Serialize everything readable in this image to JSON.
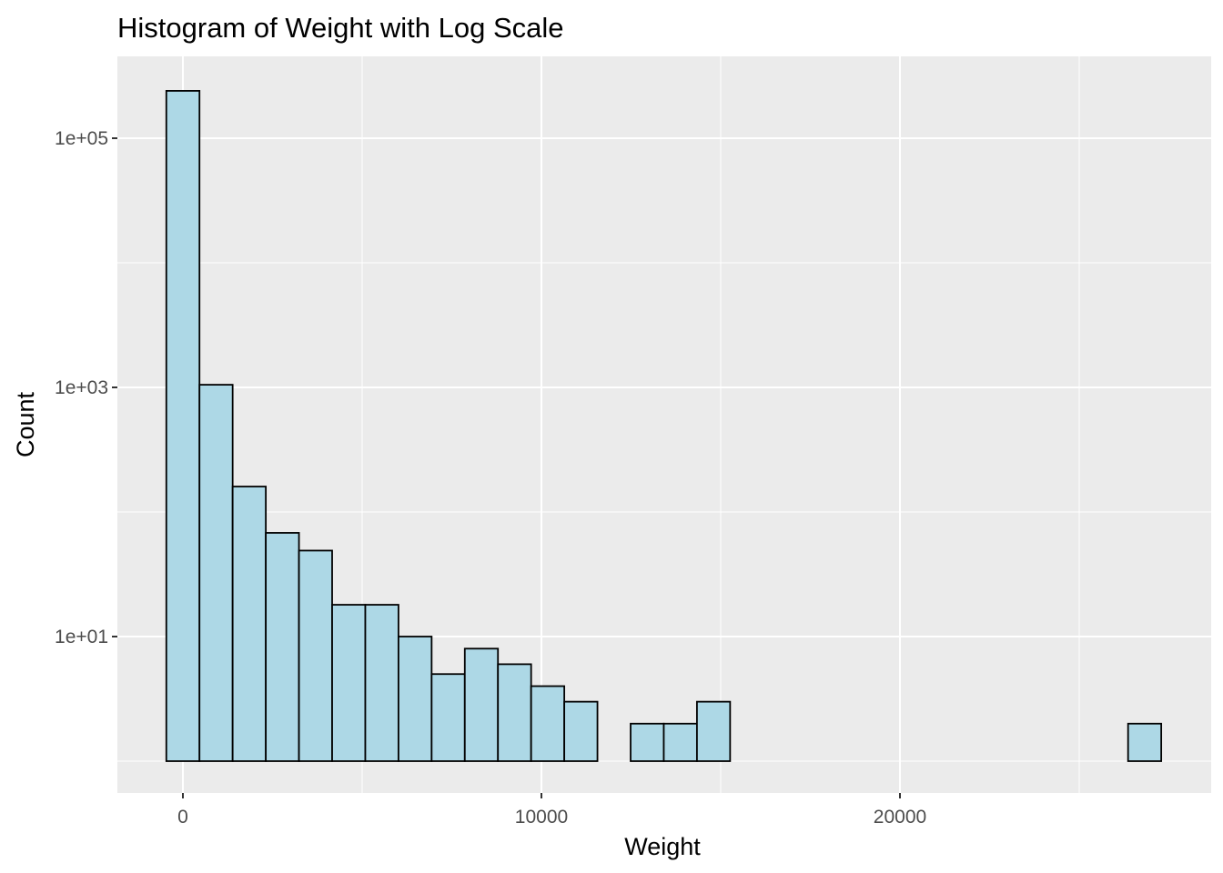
{
  "chart_data": {
    "type": "bar",
    "title": "Histogram of Weight with Log Scale",
    "xlabel": "Weight",
    "ylabel": "Count",
    "y_scale": "log10",
    "x_ticks": [
      {
        "value": 0,
        "label": "0"
      },
      {
        "value": 10000,
        "label": "10000"
      },
      {
        "value": 20000,
        "label": "20000"
      }
    ],
    "y_ticks": [
      {
        "value": 10,
        "label": "1e+01"
      },
      {
        "value": 1000,
        "label": "1e+03"
      },
      {
        "value": 100000,
        "label": "1e+05"
      }
    ],
    "bin_width": 925,
    "first_bin_center": 0,
    "bins": [
      {
        "center": 0,
        "count": 240000
      },
      {
        "center": 925,
        "count": 1050
      },
      {
        "center": 1850,
        "count": 160
      },
      {
        "center": 2775,
        "count": 68
      },
      {
        "center": 3700,
        "count": 49
      },
      {
        "center": 4625,
        "count": 18
      },
      {
        "center": 5550,
        "count": 18
      },
      {
        "center": 6475,
        "count": 10
      },
      {
        "center": 7400,
        "count": 5
      },
      {
        "center": 8325,
        "count": 8
      },
      {
        "center": 9250,
        "count": 6
      },
      {
        "center": 10175,
        "count": 4
      },
      {
        "center": 11100,
        "count": 3
      },
      {
        "center": 12025,
        "count": 0
      },
      {
        "center": 12950,
        "count": 2
      },
      {
        "center": 13875,
        "count": 2
      },
      {
        "center": 14800,
        "count": 3
      },
      {
        "center": 15725,
        "count": 0
      },
      {
        "center": 16650,
        "count": 1
      },
      {
        "center": 17575,
        "count": 0
      },
      {
        "center": 18500,
        "count": 1
      },
      {
        "center": 19425,
        "count": 0
      },
      {
        "center": 20350,
        "count": 1
      },
      {
        "center": 21275,
        "count": 0
      },
      {
        "center": 22200,
        "count": 1
      },
      {
        "center": 23125,
        "count": 0
      },
      {
        "center": 24050,
        "count": 1
      },
      {
        "center": 24975,
        "count": 0
      },
      {
        "center": 25900,
        "count": 0
      },
      {
        "center": 26825,
        "count": 2
      }
    ],
    "grid": true,
    "colors": {
      "panel_background": "#EBEBEB",
      "grid_major": "#FFFFFF",
      "bar_fill": "#ADD8E6",
      "bar_stroke": "#000000"
    }
  }
}
